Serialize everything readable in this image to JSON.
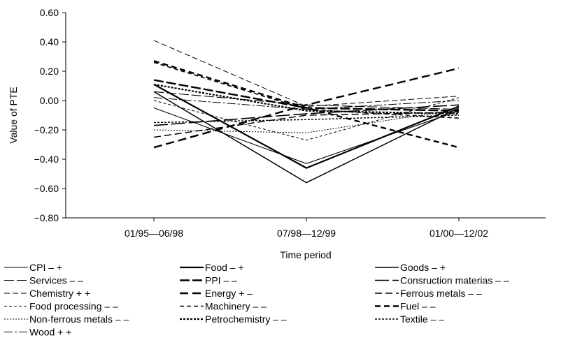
{
  "chart_data": {
    "type": "line",
    "title": "",
    "xlabel": "Time period",
    "ylabel": "Value of PTE",
    "ylim": [
      -0.8,
      0.6
    ],
    "yticks": [
      "0.60",
      "0.40",
      "0.20",
      "0.00",
      "−0.20",
      "−0.40",
      "−0.60",
      "−0.80"
    ],
    "categories": [
      "01/95—06/98",
      "07/98—12/99",
      "01/00—12/02"
    ],
    "grid": false,
    "legend_position": "bottom",
    "series": [
      {
        "name": "CPI – +",
        "values": [
          -0.05,
          -0.43,
          -0.07
        ],
        "color": "#000000",
        "dash": "",
        "width": 1.1
      },
      {
        "name": "Food – +",
        "values": [
          0.11,
          -0.46,
          -0.04
        ],
        "color": "#000000",
        "dash": "",
        "width": 2.2
      },
      {
        "name": "Goods – +",
        "values": [
          0.06,
          -0.56,
          -0.05
        ],
        "color": "#000000",
        "dash": "",
        "width": 1.5
      },
      {
        "name": "Services – –",
        "values": [
          0.06,
          -0.03,
          -0.06
        ],
        "color": "#000000",
        "dash": "14 4",
        "width": 1.1
      },
      {
        "name": "PPI – –",
        "values": [
          0.14,
          -0.05,
          -0.07
        ],
        "color": "#000000",
        "dash": "14 4",
        "width": 2.4
      },
      {
        "name": "Consruction materias – –",
        "values": [
          -0.17,
          -0.09,
          -0.03
        ],
        "color": "#000000",
        "dash": "20 5",
        "width": 1.6
      },
      {
        "name": "Chemistry + +",
        "values": [
          0.41,
          -0.04,
          0.03
        ],
        "color": "#000000",
        "dash": "8 4",
        "width": 1.0
      },
      {
        "name": "Energy + –",
        "values": [
          -0.32,
          -0.03,
          0.22
        ],
        "color": "#000000",
        "dash": "12 6",
        "width": 2.4
      },
      {
        "name": "Ferrous metals – –",
        "values": [
          -0.25,
          -0.1,
          -0.08
        ],
        "color": "#000000",
        "dash": "10 5",
        "width": 1.5
      },
      {
        "name": "Food processing – –",
        "values": [
          0.0,
          -0.27,
          0.02
        ],
        "color": "#000000",
        "dash": "4 3",
        "width": 1.0
      },
      {
        "name": "Machinery – –",
        "values": [
          0.26,
          -0.06,
          -0.12
        ],
        "color": "#000000",
        "dash": "6 4",
        "width": 1.6
      },
      {
        "name": "Fuel – –",
        "values": [
          0.27,
          -0.05,
          -0.32
        ],
        "color": "#000000",
        "dash": "8 5",
        "width": 2.4
      },
      {
        "name": "Non-ferrous metals – –",
        "values": [
          -0.2,
          -0.22,
          -0.06
        ],
        "color": "#000000",
        "dash": "2 2",
        "width": 1.0
      },
      {
        "name": "Petrochemistry – –",
        "values": [
          0.11,
          -0.07,
          -0.09
        ],
        "color": "#000000",
        "dash": "3 2",
        "width": 2.2
      },
      {
        "name": "Textile – –",
        "values": [
          -0.15,
          -0.13,
          -0.1
        ],
        "color": "#000000",
        "dash": "3 2",
        "width": 1.4
      },
      {
        "name": "Wood + +",
        "values": [
          0.02,
          -0.06,
          0.0
        ],
        "color": "#000000",
        "dash": "12 3 3 3",
        "width": 1.0
      }
    ]
  }
}
